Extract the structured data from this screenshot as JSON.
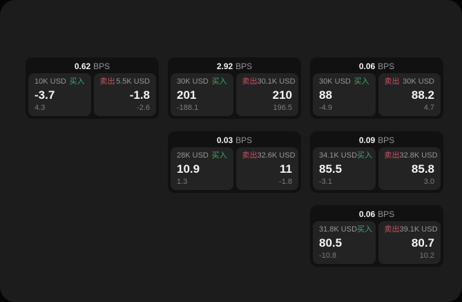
{
  "labels": {
    "bps": "BPS",
    "buy": "买入",
    "sell": "卖出"
  },
  "colors": {
    "background": "#050505",
    "window": "#1c1c1d",
    "card": "#111112",
    "panel": "#232324",
    "text_primary": "#f4f4f5",
    "text_secondary": "#96969a",
    "text_tertiary": "#7d7d81",
    "buy_green": "#3fa868",
    "sell_red": "#cc5260"
  },
  "cards": [
    {
      "bps": "0.62",
      "buy": {
        "amount": "10K USD",
        "value": "-3.7",
        "sub": "4.3"
      },
      "sell": {
        "amount": "5.5K USD",
        "value": "-1.8",
        "sub": "-2.6"
      }
    },
    {
      "bps": "2.92",
      "buy": {
        "amount": "30K USD",
        "value": "201",
        "sub": "-188.1"
      },
      "sell": {
        "amount": "30.1K USD",
        "value": "210",
        "sub": "196.5"
      }
    },
    {
      "bps": "0.06",
      "buy": {
        "amount": "30K USD",
        "value": "88",
        "sub": "-4.9"
      },
      "sell": {
        "amount": "30K USD",
        "value": "88.2",
        "sub": "4.7"
      }
    },
    {
      "bps": "0.03",
      "buy": {
        "amount": "28K USD",
        "value": "10.9",
        "sub": "1.3"
      },
      "sell": {
        "amount": "32.6K USD",
        "value": "11",
        "sub": "-1.8"
      }
    },
    {
      "bps": "0.09",
      "buy": {
        "amount": "34.1K USD",
        "value": "85.5",
        "sub": "-3.1"
      },
      "sell": {
        "amount": "32.8K USD",
        "value": "85.8",
        "sub": "3.0"
      }
    },
    {
      "bps": "0.06",
      "buy": {
        "amount": "31.8K USD",
        "value": "80.5",
        "sub": "-10.8"
      },
      "sell": {
        "amount": "39.1K USD",
        "value": "80.7",
        "sub": "10.2"
      }
    }
  ]
}
